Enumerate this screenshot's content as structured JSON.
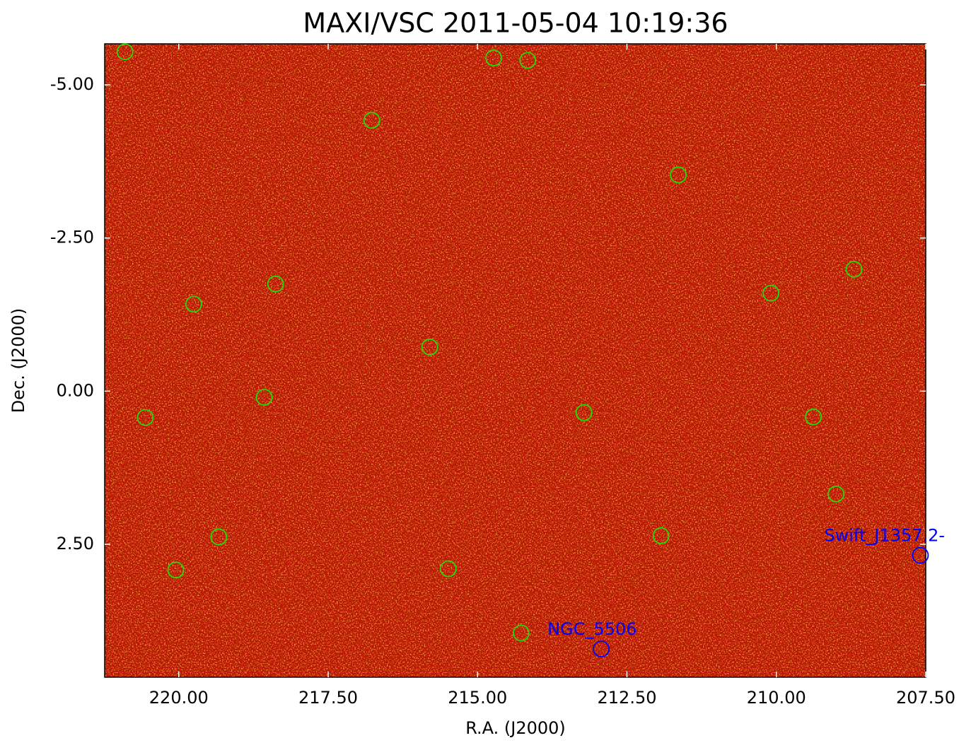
{
  "chart_data": {
    "type": "scatter",
    "title": "MAXI/VSC 2011-05-04 10:19:36",
    "xlabel": "R.A. (J2000)",
    "ylabel": "Dec. (J2000)",
    "xlim": [
      221.24,
      207.5
    ],
    "ylim": [
      4.67,
      -5.67
    ],
    "xticks": [
      {
        "value": 220,
        "label": "220.00"
      },
      {
        "value": 217.5,
        "label": "217.50"
      },
      {
        "value": 215,
        "label": "215.00"
      },
      {
        "value": 212.5,
        "label": "212.50"
      },
      {
        "value": 210,
        "label": "210.00"
      },
      {
        "value": 207.5,
        "label": "207.50"
      }
    ],
    "yticks": [
      {
        "value": -5,
        "label": "-5.00"
      },
      {
        "value": -2.5,
        "label": "-2.50"
      },
      {
        "value": 0,
        "label": "0.00"
      },
      {
        "value": 2.5,
        "label": "2.50"
      }
    ],
    "series": [
      {
        "color": "#22dd00",
        "x": [
          220.9,
          214.73,
          214.16,
          216.77,
          211.64,
          218.38,
          219.75,
          208.7,
          210.09,
          215.8,
          218.57,
          220.56,
          213.22,
          209.38,
          209.0,
          219.33,
          211.93,
          220.05,
          215.49,
          214.27
        ],
        "values": [
          -5.54,
          -5.44,
          -5.4,
          -4.42,
          -3.53,
          -1.75,
          -1.42,
          -1.99,
          -1.6,
          -0.72,
          0.1,
          0.43,
          0.35,
          0.42,
          1.68,
          2.38,
          2.36,
          2.92,
          2.9,
          3.95
        ]
      },
      {
        "color": "#0000ff",
        "x": [
          212.93,
          207.59
        ],
        "values": [
          4.21,
          2.68
        ],
        "labels": [
          "NGC_5506",
          "Swift_J1357.2-"
        ]
      }
    ]
  }
}
